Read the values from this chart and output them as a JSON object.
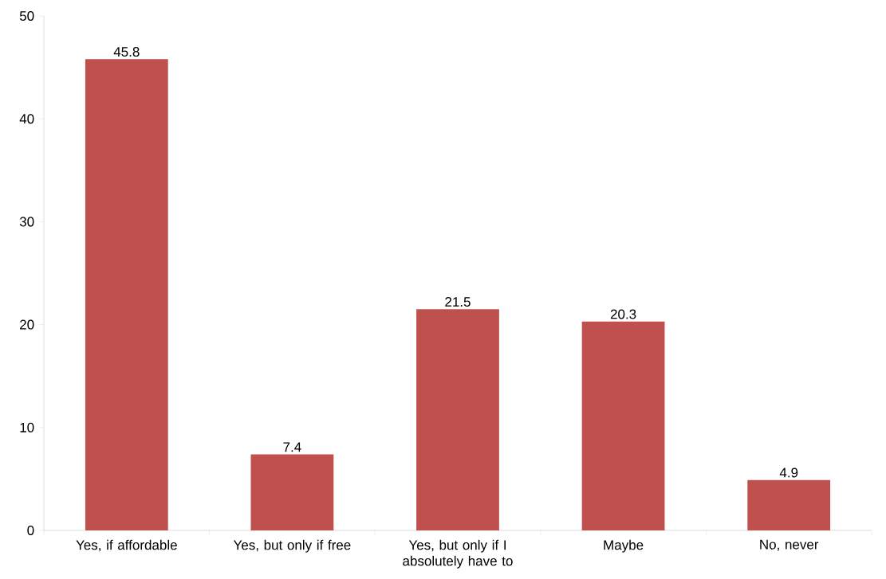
{
  "chart_data": {
    "type": "bar",
    "categories": [
      "Yes, if affordable",
      "Yes, but only if free",
      "Yes, but only if I absolutely have to",
      "Maybe",
      "No, never"
    ],
    "values": [
      45.8,
      7.4,
      21.5,
      20.3,
      4.9
    ],
    "color": "#c0504d",
    "ylim": [
      0,
      50
    ],
    "yticks": [
      0,
      10,
      20,
      30,
      40,
      50
    ],
    "data_labels": true
  }
}
